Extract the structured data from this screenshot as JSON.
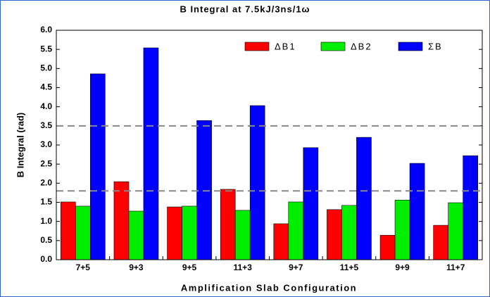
{
  "chart_data": {
    "type": "bar",
    "title": "B Integral at 7.5kJ/3ns/1ω",
    "x_label": "Amplification Slab Configuration",
    "y_label": "B Integral (rad)",
    "categories": [
      "7+5",
      "9+3",
      "9+5",
      "11+3",
      "9+7",
      "11+5",
      "9+9",
      "11+7"
    ],
    "series": [
      {
        "name": "ΔB1",
        "color": "#ff0000",
        "values": [
          1.51,
          2.04,
          1.38,
          1.84,
          0.94,
          1.31,
          0.64,
          0.9
        ]
      },
      {
        "name": "ΔB2",
        "color": "#00ee00",
        "values": [
          1.4,
          1.27,
          1.4,
          1.29,
          1.51,
          1.42,
          1.56,
          1.49
        ]
      },
      {
        "name": "ΣB",
        "color": "#0000ff",
        "values": [
          4.86,
          5.54,
          3.64,
          4.03,
          2.93,
          3.2,
          2.52,
          2.72
        ]
      }
    ],
    "ylim": [
      0,
      6
    ],
    "yticks": [
      {
        "value": 0,
        "label": "0.0"
      },
      0.5,
      {
        "value": 1,
        "label": "1.0"
      },
      1.5,
      {
        "value": 2,
        "label": "2.0"
      },
      2.5,
      {
        "value": 3,
        "label": "3.0"
      },
      3.5,
      {
        "value": 4,
        "label": "4.0"
      },
      4.5,
      {
        "value": 5,
        "label": "5.0"
      },
      5.5,
      {
        "value": 6,
        "label": "6.0"
      }
    ],
    "reference_lines": [
      1.8,
      3.5
    ],
    "legend": "upper right"
  }
}
